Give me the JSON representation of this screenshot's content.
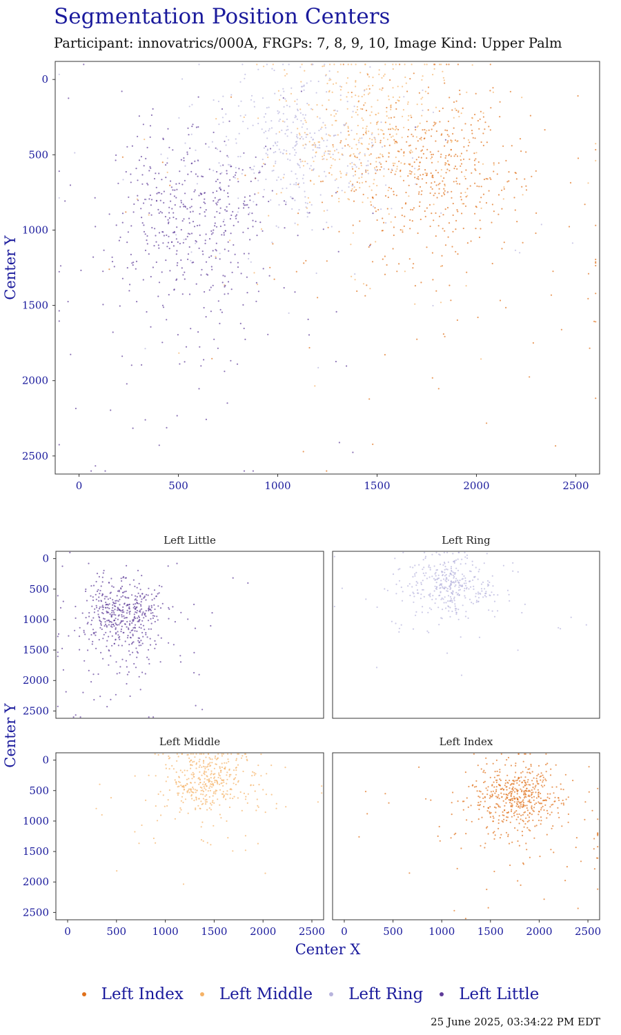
{
  "title": "Segmentation Position Centers",
  "subtitle": "Participant: innovatrics/000A, FRGPs: 7, 8, 9, 10, Image Kind: Upper Palm",
  "timestamp": "25 June 2025, 03:34:22 PM EDT",
  "colors": {
    "Left Index": "#e0701a",
    "Left Middle": "#f5b266",
    "Left Ring": "#b7b3dd",
    "Left Little": "#5e3c99",
    "axis_text": "#1a1a9c"
  },
  "chart_data": [
    {
      "type": "scatter",
      "panel": "main",
      "title": "",
      "xlabel": "",
      "ylabel": "Center Y",
      "x_ticks": [
        0,
        500,
        1000,
        1500,
        2000,
        2500
      ],
      "y_ticks": [
        0,
        500,
        1000,
        1500,
        2000,
        2500
      ],
      "xlim": [
        -120,
        2620
      ],
      "ylim": [
        2620,
        -120
      ],
      "y_reversed": true,
      "series": [
        {
          "name": "Left Index",
          "center": [
            1780,
            600
          ],
          "spread": [
            230,
            300
          ],
          "count": 560
        },
        {
          "name": "Left Middle",
          "center": [
            1450,
            320
          ],
          "spread": [
            230,
            250
          ],
          "count": 420
        },
        {
          "name": "Left Ring",
          "center": [
            1080,
            420
          ],
          "spread": [
            220,
            260
          ],
          "count": 380
        },
        {
          "name": "Left Little",
          "center": [
            580,
            900
          ],
          "spread": [
            200,
            360
          ],
          "count": 520
        }
      ]
    },
    {
      "type": "scatter",
      "panel": "facet",
      "title": "Left Little",
      "series": [
        {
          "name": "Left Little",
          "center": [
            580,
            900
          ],
          "spread": [
            200,
            360
          ],
          "count": 520
        }
      ]
    },
    {
      "type": "scatter",
      "panel": "facet",
      "title": "Left Ring",
      "series": [
        {
          "name": "Left Ring",
          "center": [
            1080,
            420
          ],
          "spread": [
            220,
            260
          ],
          "count": 380
        }
      ]
    },
    {
      "type": "scatter",
      "panel": "facet",
      "title": "Left Middle",
      "series": [
        {
          "name": "Left Middle",
          "center": [
            1450,
            320
          ],
          "spread": [
            230,
            250
          ],
          "count": 420
        }
      ]
    },
    {
      "type": "scatter",
      "panel": "facet",
      "title": "Left Index",
      "series": [
        {
          "name": "Left Index",
          "center": [
            1780,
            600
          ],
          "spread": [
            230,
            300
          ],
          "count": 560
        }
      ]
    }
  ],
  "facet_axes": {
    "xlabel": "Center X",
    "ylabel": "Center Y",
    "x_ticks": [
      0,
      500,
      1000,
      1500,
      2000,
      2500
    ],
    "y_ticks": [
      0,
      500,
      1000,
      1500,
      2000,
      2500
    ],
    "xlim": [
      -120,
      2620
    ],
    "ylim": [
      2620,
      -120
    ]
  },
  "legend": {
    "position": "bottom",
    "items": [
      "Left Index",
      "Left Middle",
      "Left Ring",
      "Left Little"
    ]
  }
}
